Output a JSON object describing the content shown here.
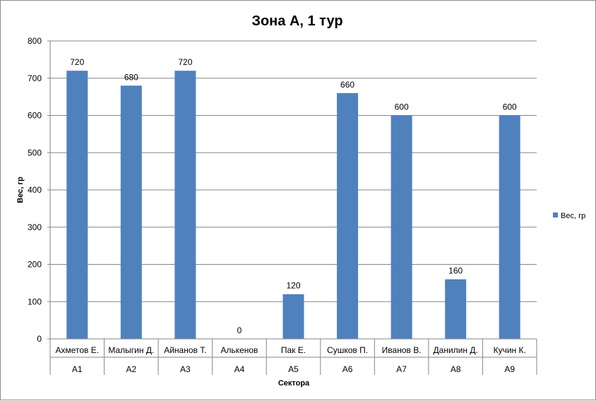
{
  "chart_data": {
    "type": "bar",
    "title": "Зона А, 1 тур",
    "xlabel": "Сектора",
    "ylabel": "Вес, гр",
    "ylim": [
      0,
      800
    ],
    "yticks": [
      0,
      100,
      200,
      300,
      400,
      500,
      600,
      700,
      800
    ],
    "categories": [
      "Ахметов Е.",
      "Малыгин Д.",
      "Айнанов Т.",
      "Алькенов",
      "Пак Е.",
      "Сушков П.",
      "Иванов В.",
      "Данилин Д.",
      "Кучин К."
    ],
    "sectors": [
      "А1",
      "А2",
      "А3",
      "А4",
      "А5",
      "А6",
      "А7",
      "А8",
      "А9"
    ],
    "series": [
      {
        "name": "Вес, гр",
        "values": [
          720,
          680,
          720,
          0,
          120,
          660,
          600,
          160,
          600
        ]
      }
    ],
    "colors": {
      "bar": "#4f81bd",
      "grid": "#868686"
    },
    "grid": true,
    "legend_position": "right",
    "data_labels": true
  }
}
